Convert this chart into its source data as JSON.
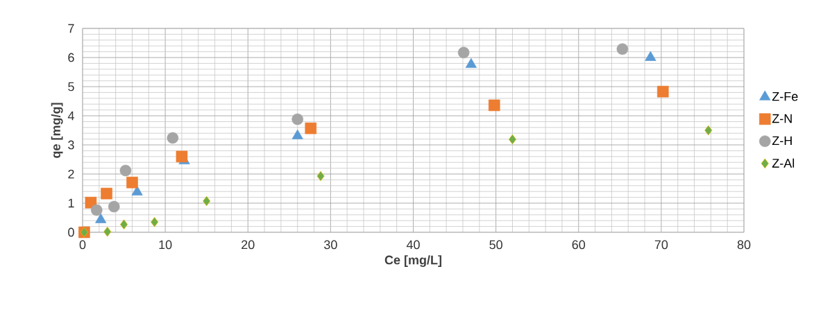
{
  "chart_data": {
    "type": "scatter",
    "xlabel": "Ce [mg/L]",
    "ylabel": "qe [mg/g]",
    "xlim": [
      0,
      80
    ],
    "xticks": [
      0,
      10,
      20,
      30,
      40,
      50,
      60,
      70,
      80
    ],
    "ylim": [
      0,
      7
    ],
    "yticks": [
      0,
      1,
      2,
      3,
      4,
      5,
      6,
      7
    ],
    "grid": true,
    "legend": "right",
    "series": [
      {
        "name": "Z-Fe",
        "color": "#5b9bd5",
        "marker": "triangle",
        "x": [
          2.2,
          6.6,
          12.3,
          26.0,
          47.0,
          68.7
        ],
        "values": [
          0.43,
          1.38,
          2.45,
          3.31,
          5.76,
          6.0
        ]
      },
      {
        "name": "Z-N",
        "color": "#ed7d31",
        "marker": "square",
        "x": [
          0.2,
          1.0,
          2.9,
          6.0,
          12.0,
          27.6,
          49.8,
          70.2
        ],
        "values": [
          0,
          1.02,
          1.33,
          1.71,
          2.6,
          3.57,
          4.36,
          4.83
        ]
      },
      {
        "name": "Z-H",
        "color": "#a5a5a5",
        "marker": "circle",
        "x": [
          1.7,
          3.8,
          5.2,
          10.9,
          26.0,
          46.1,
          65.3
        ],
        "values": [
          0.76,
          0.88,
          2.12,
          3.24,
          3.88,
          6.17,
          6.29
        ]
      },
      {
        "name": "Z-Al",
        "color": "#70ad47",
        "marker": "diamond",
        "x": [
          0.2,
          3.0,
          5.0,
          8.7,
          15.0,
          28.8,
          52.0,
          75.7
        ],
        "values": [
          0,
          0.02,
          0.27,
          0.35,
          1.07,
          1.93,
          3.19,
          3.5
        ]
      }
    ]
  }
}
